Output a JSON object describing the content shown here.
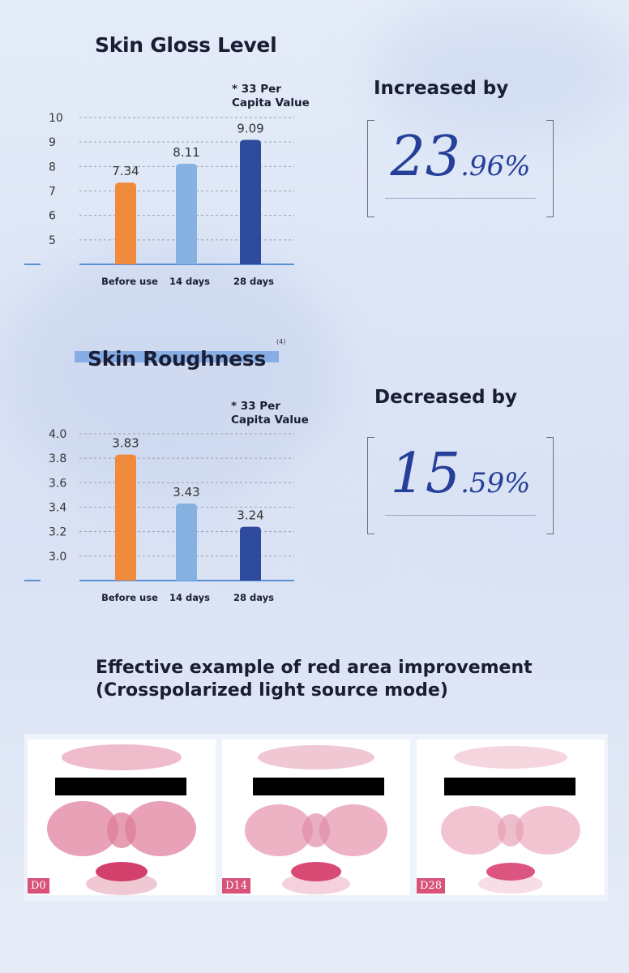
{
  "gloss": {
    "title": "Skin Gloss Level",
    "note": "* 33 Per\nCapita Value",
    "callout_label": "Increased by",
    "callout_big": "23",
    "callout_small": ".96%"
  },
  "roughness": {
    "title": "Skin Roughness",
    "footnote": "(4)",
    "note": "* 33 Per\nCapita Value",
    "callout_label": "Decreased by",
    "callout_big": "15",
    "callout_small": ".59%"
  },
  "chart_data": [
    {
      "type": "bar",
      "title": "Skin Gloss Level",
      "categories": [
        "Before use",
        "14 days",
        "28 days"
      ],
      "values": [
        7.34,
        8.11,
        9.09
      ],
      "value_labels": [
        "7.34",
        "8.11",
        "9.09"
      ],
      "yticks": [
        "10",
        "9",
        "8",
        "7",
        "6",
        "5"
      ],
      "ylim": [
        4,
        10
      ],
      "grid": true,
      "colors": [
        "#f08a3c",
        "#86b2e2",
        "#2e4a9c"
      ]
    },
    {
      "type": "bar",
      "title": "Skin Roughness",
      "categories": [
        "Before use",
        "14 days",
        "28 days"
      ],
      "values": [
        3.83,
        3.43,
        3.24
      ],
      "value_labels": [
        "3.83",
        "3.43",
        "3.24"
      ],
      "yticks": [
        "4.0",
        "3.8",
        "3.6",
        "3.4",
        "3.2",
        "3.0"
      ],
      "ylim": [
        2.8,
        4.0
      ],
      "grid": true,
      "colors": [
        "#f08a3c",
        "#86b2e2",
        "#2e4a9c"
      ]
    }
  ],
  "example": {
    "title_line1": "Effective example of red area improvement",
    "title_line2": "(Crosspolarized light source mode)",
    "photos": [
      {
        "label": "D0"
      },
      {
        "label": "D14"
      },
      {
        "label": "D28"
      }
    ]
  }
}
